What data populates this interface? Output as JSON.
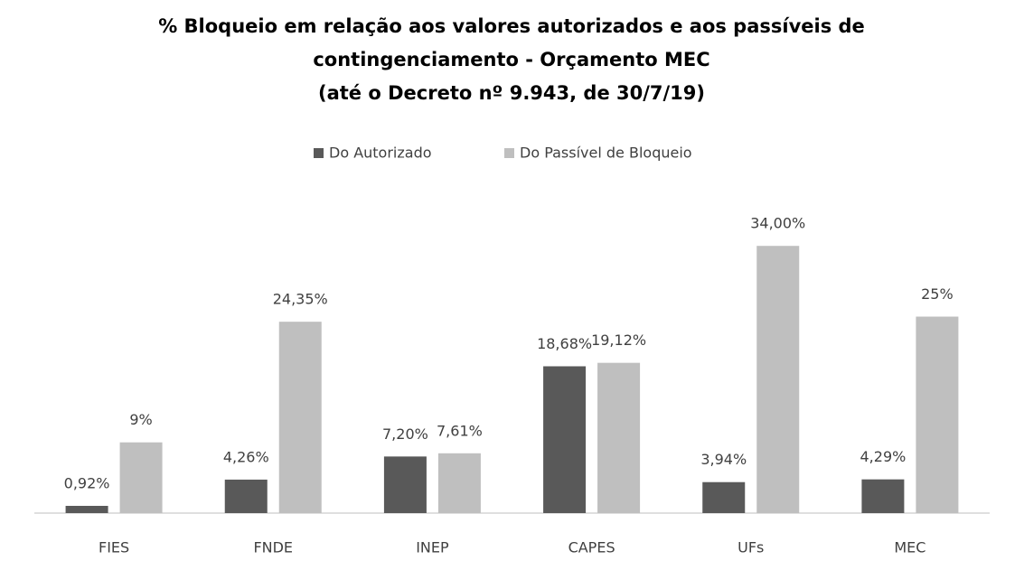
{
  "chart_data": {
    "type": "bar",
    "title": [
      "% Bloqueio em relação aos valores autorizados e aos passíveis de",
      "contingenciamento - Orçamento MEC",
      "(até o Decreto nº 9.943, de 30/7/19)"
    ],
    "categories": [
      "FIES",
      "FNDE",
      "INEP",
      "CAPES",
      "UFs",
      "MEC"
    ],
    "series": [
      {
        "name": "Do Autorizado",
        "color": "#595959",
        "values": [
          0.92,
          4.26,
          7.2,
          18.68,
          3.94,
          4.29
        ],
        "value_labels": [
          "0,92%",
          "4,26%",
          "7,20%",
          "18,68%",
          "3,94%",
          "4,29%"
        ]
      },
      {
        "name": "Do Passível de Bloqueio",
        "color": "#bfbfbf",
        "values": [
          9,
          24.35,
          7.61,
          19.12,
          34,
          25
        ],
        "value_labels": [
          "9%",
          "24,35%",
          "7,61%",
          "19,12%",
          "34,00%",
          "25%"
        ]
      }
    ],
    "ylim": [
      0,
      40
    ],
    "legend": "top"
  }
}
